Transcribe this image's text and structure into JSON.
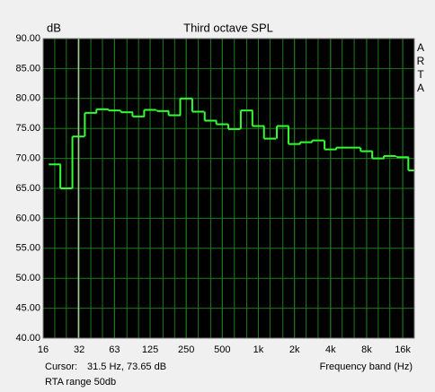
{
  "chart_data": {
    "type": "step",
    "title": "Third octave SPL",
    "y_label": "dB",
    "x_label": "Frequency band (Hz)",
    "brand": "ARTA",
    "cursor": {
      "label": "Cursor:",
      "text": "31.5 Hz, 73.65 dB",
      "x": 31.5
    },
    "footer": "RTA range 50db",
    "log_x": true,
    "grid": true,
    "background": "#000000",
    "grid_color": "#1f7a1f",
    "x": [
      20,
      25,
      31.5,
      40,
      50,
      63,
      80,
      100,
      125,
      160,
      200,
      250,
      315,
      400,
      500,
      630,
      800,
      1000,
      1250,
      1600,
      2000,
      2500,
      3150,
      4000,
      5000,
      6300,
      8000,
      10000,
      12500,
      16000,
      20000
    ],
    "series": [
      {
        "name": "SPL",
        "color": "#33ff33",
        "values": [
          69,
          65,
          73.65,
          77.6,
          78.2,
          78,
          77.7,
          77,
          78.1,
          77.9,
          77.2,
          80,
          77.8,
          76.3,
          75.7,
          74.9,
          78,
          75.4,
          73.3,
          75.4,
          72.4,
          72.7,
          73,
          71.5,
          71.8,
          71.8,
          71.2,
          70,
          70.4,
          70.2,
          68
        ]
      }
    ],
    "xlim": [
      16,
      20000
    ],
    "xticks": [
      16,
      32,
      63,
      125,
      250,
      500,
      {
        "value": 1000,
        "label": "1k"
      },
      {
        "value": 2000,
        "label": "2k"
      },
      {
        "value": 4000,
        "label": "4k"
      },
      {
        "value": 8000,
        "label": "8k"
      },
      {
        "value": 16000,
        "label": "16k"
      }
    ],
    "ylim": [
      40,
      90
    ],
    "yticks": [
      {
        "value": 40,
        "label": "40.00"
      },
      {
        "value": 45,
        "label": "45.00"
      },
      {
        "value": 50,
        "label": "50.00"
      },
      {
        "value": 55,
        "label": "55.00"
      },
      {
        "value": 60,
        "label": "60.00"
      },
      {
        "value": 65,
        "label": "65.00"
      },
      {
        "value": 70,
        "label": "70.00"
      },
      {
        "value": 75,
        "label": "75.00"
      },
      {
        "value": 80,
        "label": "80.00"
      },
      {
        "value": 85,
        "label": "85.00"
      },
      {
        "value": 90,
        "label": "90.00"
      }
    ]
  }
}
